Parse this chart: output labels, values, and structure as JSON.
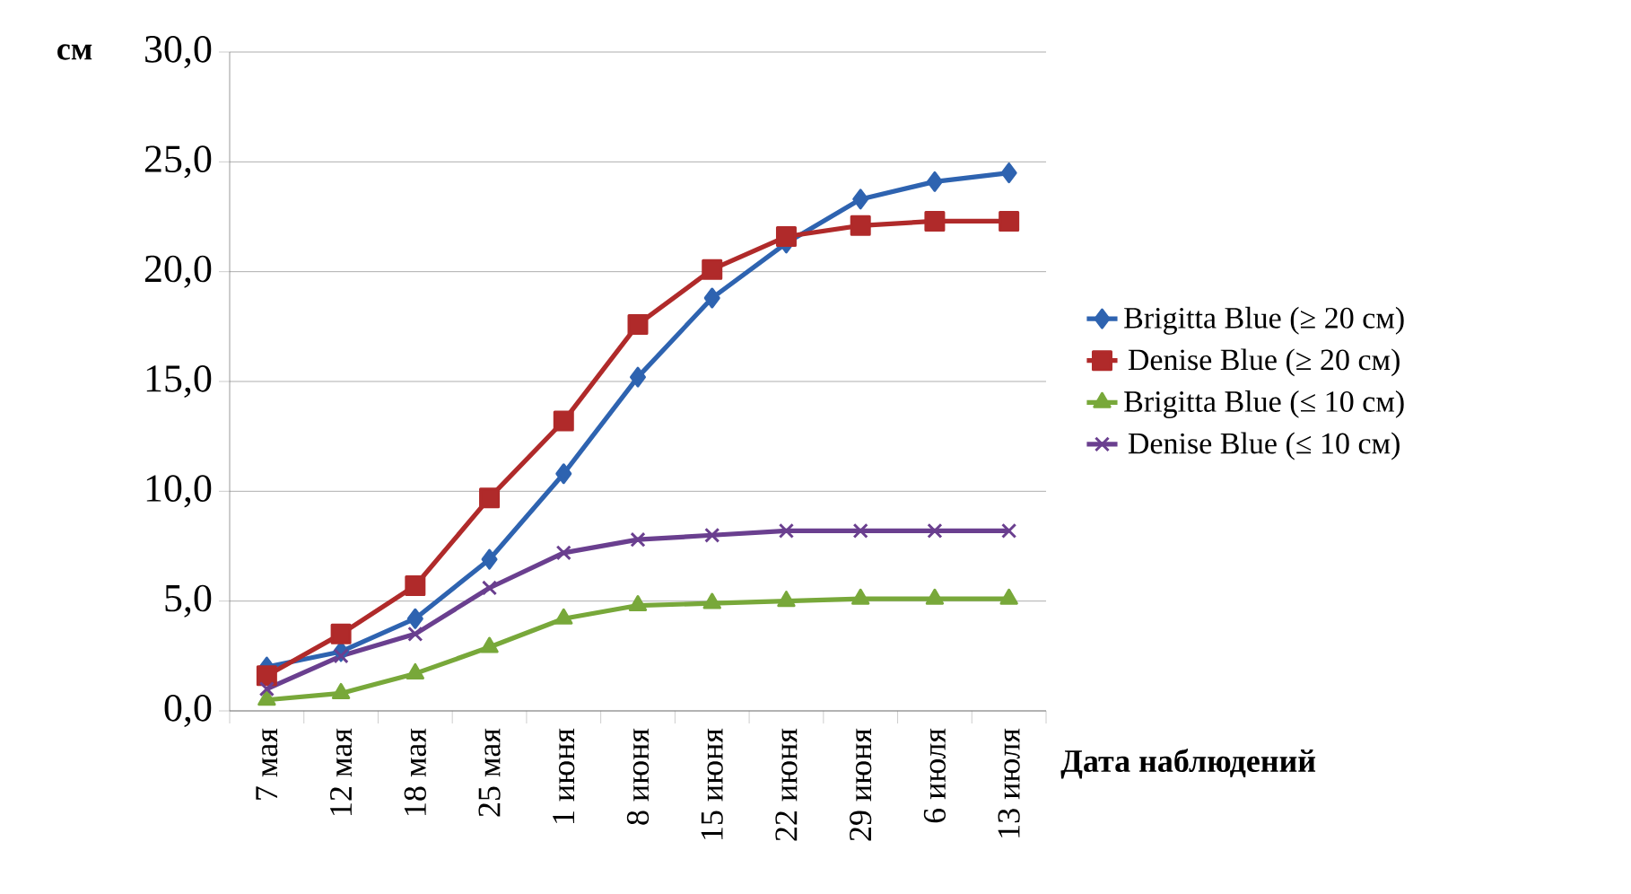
{
  "chart_data": {
    "type": "line",
    "xlabel": "Дата наблюдений",
    "ylabel": "см",
    "categories": [
      "7 мая",
      "12 мая",
      "18 мая",
      "25 мая",
      "1 июня",
      "8 июня",
      "15 июня",
      "22 июня",
      "29 июня",
      "6 июля",
      "13 июля"
    ],
    "series": [
      {
        "name": "Brigitta Blue (≥ 20 см)",
        "color": "#2e63b0",
        "marker": "diamond",
        "values": [
          2.0,
          2.7,
          4.2,
          6.9,
          10.8,
          15.2,
          18.8,
          21.3,
          23.3,
          24.1,
          24.5
        ]
      },
      {
        "name": "Denise Blue (≥ 20 см)",
        "color": "#b02a2a",
        "marker": "square",
        "values": [
          1.6,
          3.5,
          5.7,
          9.7,
          13.2,
          17.6,
          20.1,
          21.6,
          22.1,
          22.3,
          22.3
        ]
      },
      {
        "name": "Brigitta Blue (≤ 10 см)",
        "color": "#78a83a",
        "marker": "triangle",
        "values": [
          0.5,
          0.8,
          1.7,
          2.9,
          4.2,
          4.8,
          4.9,
          5.0,
          5.1,
          5.1,
          5.1
        ]
      },
      {
        "name": "Denise Blue (≤ 10 см)",
        "color": "#6a3f8f",
        "marker": "cross",
        "values": [
          1.0,
          2.5,
          3.5,
          5.6,
          7.2,
          7.8,
          8.0,
          8.2,
          8.2,
          8.2,
          8.2
        ]
      }
    ],
    "ylim": [
      0,
      30
    ],
    "yticks": [
      {
        "value": 0,
        "label": "0,0"
      },
      {
        "value": 5,
        "label": "5,0"
      },
      {
        "value": 10,
        "label": "10,0"
      },
      {
        "value": 15,
        "label": "15,0"
      },
      {
        "value": 20,
        "label": "20,0"
      },
      {
        "value": 25,
        "label": "25,0"
      },
      {
        "value": 30,
        "label": "30,0"
      }
    ],
    "grid": "y",
    "legend": "right"
  }
}
